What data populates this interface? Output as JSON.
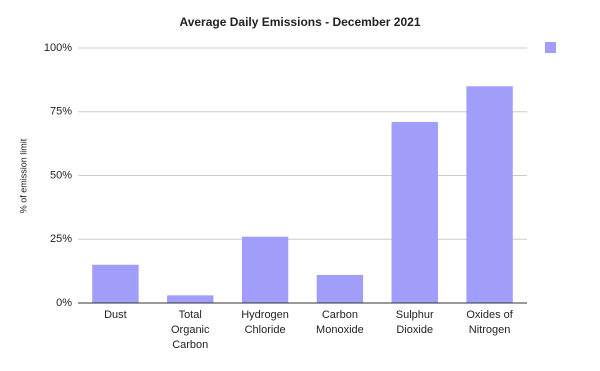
{
  "chart_data": {
    "type": "bar",
    "title": "Average Daily Emissions - December 2021",
    "y_label": "% of emission limit",
    "categories": [
      "Dust",
      "Total Organic Carbon",
      "Hydrogen Chloride",
      "Carbon Monoxide",
      "Sulphur Dioxide",
      "Oxides of Nitrogen"
    ],
    "values": [
      15,
      3,
      26,
      11,
      71,
      85
    ],
    "color": "#a09dfb",
    "ylim": [
      0,
      100
    ],
    "yticks": [
      {
        "value": 0,
        "label": "0%"
      },
      {
        "value": 25,
        "label": "25%"
      },
      {
        "value": 50,
        "label": "50%"
      },
      {
        "value": 75,
        "label": "75%"
      },
      {
        "value": 100,
        "label": "100%"
      }
    ],
    "grid": true
  }
}
